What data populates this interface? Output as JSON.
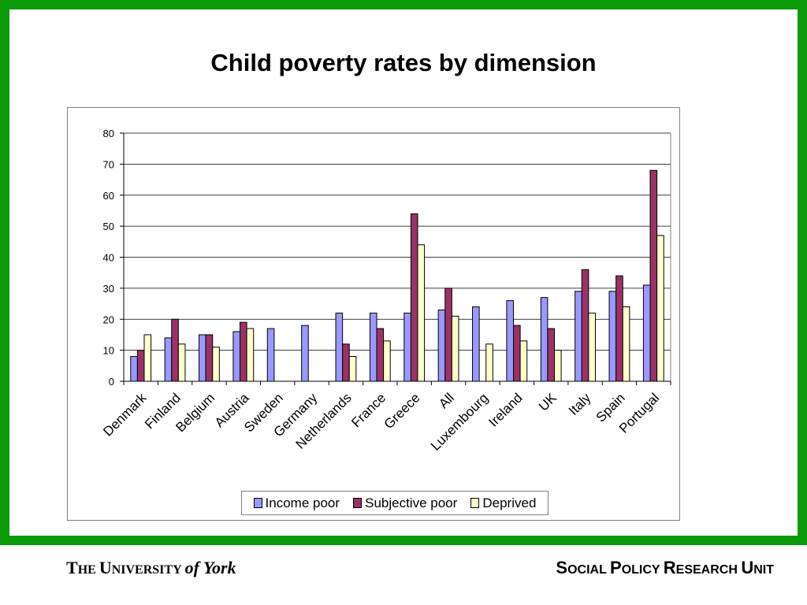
{
  "slide": {
    "title": "Child poverty rates by dimension",
    "colors": {
      "frame": "#0a9a0a",
      "background": "#ffffff"
    }
  },
  "chart_data": {
    "type": "bar",
    "title": "",
    "xlabel": "",
    "ylabel": "",
    "ylim": [
      0,
      80
    ],
    "yticks": [
      0,
      10,
      20,
      30,
      40,
      50,
      60,
      70,
      80
    ],
    "grid": true,
    "legend_position": "bottom",
    "categories": [
      "Denmark",
      "Finland",
      "Belgium",
      "Austria",
      "Sweden",
      "Germany",
      "Netherlands",
      "France",
      "Greece",
      "All",
      "Luxembourg",
      "Ireland",
      "UK",
      "Italy",
      "Spain",
      "Portugal"
    ],
    "series": [
      {
        "name": "Income poor",
        "color": "#9999ff",
        "values": [
          8,
          14,
          15,
          16,
          17,
          18,
          22,
          22,
          22,
          23,
          24,
          26,
          27,
          29,
          29,
          31
        ]
      },
      {
        "name": "Subjective poor",
        "color": "#993366",
        "values": [
          10,
          20,
          15,
          19,
          null,
          null,
          12,
          17,
          54,
          30,
          null,
          18,
          17,
          36,
          34,
          68
        ]
      },
      {
        "name": "Deprived",
        "color": "#ffffcc",
        "values": [
          15,
          12,
          11,
          17,
          null,
          null,
          8,
          13,
          44,
          21,
          12,
          13,
          10,
          22,
          24,
          47
        ]
      }
    ]
  },
  "footer": {
    "left_t": "T",
    "left_he": "HE ",
    "left_u": "U",
    "left_niversity": "NIVERSITY",
    "left_of_york": "of York",
    "right_s": "S",
    "right_ocial": "OCIAL ",
    "right_p": "P",
    "right_olicy": "OLICY ",
    "right_r": "R",
    "right_esearch": "ESEARCH ",
    "right_u": "U",
    "right_nit": "NIT"
  }
}
